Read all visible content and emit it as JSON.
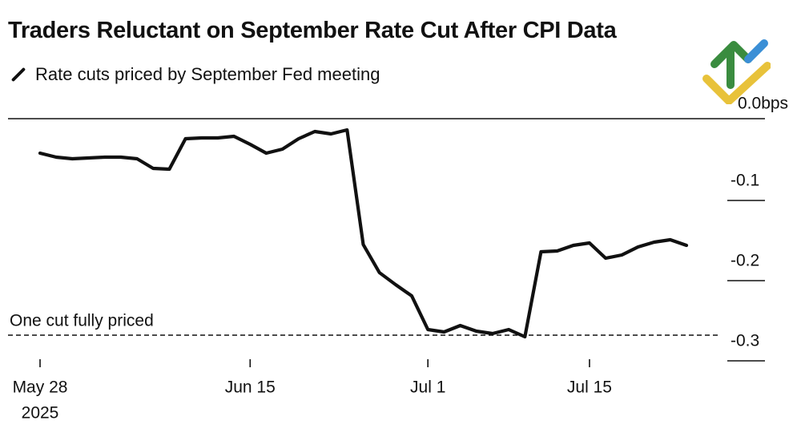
{
  "title": "Traders Reluctant on September Rate Cut After CPI Data",
  "legend": {
    "label": "Rate cuts priced by September Fed meeting"
  },
  "colors": {
    "line": "#111111",
    "logo_green": "#3a8c3f",
    "logo_blue": "#3b8fd6",
    "logo_yellow": "#e8c23a"
  },
  "annotation": {
    "label": "One cut fully priced",
    "value": -0.27
  },
  "chart_data": {
    "type": "line",
    "title": "Traders Reluctant on September Rate Cut After CPI Data",
    "ylabel": "bps",
    "ylim": [
      -0.3,
      0.0
    ],
    "yticks": [
      {
        "value": 0.0,
        "label": "0.0bps"
      },
      {
        "value": -0.1,
        "label": "-0.1"
      },
      {
        "value": -0.2,
        "label": "-0.2"
      },
      {
        "value": -0.3,
        "label": "-0.3"
      }
    ],
    "xticks": [
      {
        "index": 0,
        "label": "May 28",
        "sublabel": "2025"
      },
      {
        "index": 13,
        "label": "Jun 15"
      },
      {
        "index": 24,
        "label": "Jul 1"
      },
      {
        "index": 34,
        "label": "Jul 15"
      }
    ],
    "series": [
      {
        "name": "Rate cuts priced by September Fed meeting",
        "values": [
          -0.043,
          -0.048,
          -0.05,
          -0.049,
          -0.048,
          -0.048,
          -0.05,
          -0.062,
          -0.063,
          -0.025,
          -0.024,
          -0.024,
          -0.022,
          -0.032,
          -0.043,
          -0.038,
          -0.025,
          -0.016,
          -0.019,
          -0.014,
          -0.157,
          -0.192,
          -0.207,
          -0.221,
          -0.263,
          -0.266,
          -0.258,
          -0.265,
          -0.268,
          -0.263,
          -0.272,
          -0.166,
          -0.165,
          -0.158,
          -0.155,
          -0.174,
          -0.17,
          -0.16,
          -0.154,
          -0.151,
          -0.158
        ]
      }
    ]
  },
  "xtick_positions_index": [
    0,
    13,
    24,
    34
  ]
}
